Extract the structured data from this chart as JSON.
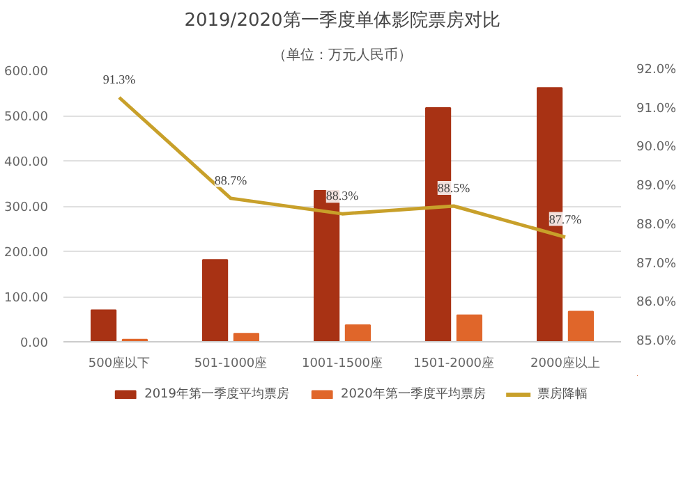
{
  "chart_data": {
    "type": "bar",
    "title": "2019/2020第一季度单体影院票房对比",
    "subtitle": "（单位：万元人民币）",
    "categories": [
      "500座以下",
      "501-1000座",
      "1001-1500座",
      "1501-2000座",
      "2000座以上"
    ],
    "series": [
      {
        "name": "2019年第一季度平均票房",
        "color": "#a83214",
        "values": [
          70,
          181,
          334,
          517,
          561
        ]
      },
      {
        "name": "2020年第一季度平均票房",
        "color": "#e0662a",
        "values": [
          5,
          18,
          37,
          59,
          67
        ]
      },
      {
        "name": "票房降幅",
        "type": "line",
        "axis": "y2",
        "color": "#c8a02a",
        "values": [
          91.3,
          88.7,
          88.3,
          88.5,
          87.7
        ],
        "value_labels": [
          "91.3%",
          "88.7%",
          "88.3%",
          "88.5%",
          "87.7%"
        ]
      }
    ],
    "ylim": [
      0,
      600
    ],
    "yticks": [
      {
        "value": 0,
        "label": "0.00"
      },
      {
        "value": 100,
        "label": "100.00"
      },
      {
        "value": 200,
        "label": "200.00"
      },
      {
        "value": 300,
        "label": "300.00"
      },
      {
        "value": 400,
        "label": "400.00"
      },
      {
        "value": 500,
        "label": "500.00"
      },
      {
        "value": 600,
        "label": "600.00"
      }
    ],
    "y2lim": [
      85,
      92
    ],
    "y2ticks": [
      {
        "value": 85,
        "label": "85.0%"
      },
      {
        "value": 86,
        "label": "86.0%"
      },
      {
        "value": 87,
        "label": "87.0%"
      },
      {
        "value": 88,
        "label": "88.0%"
      },
      {
        "value": 89,
        "label": "89.0%"
      },
      {
        "value": 90,
        "label": "90.0%"
      },
      {
        "value": 91,
        "label": "91.0%"
      },
      {
        "value": 92,
        "label": "92.0%"
      }
    ],
    "grid": "y",
    "legend": "bottom"
  }
}
